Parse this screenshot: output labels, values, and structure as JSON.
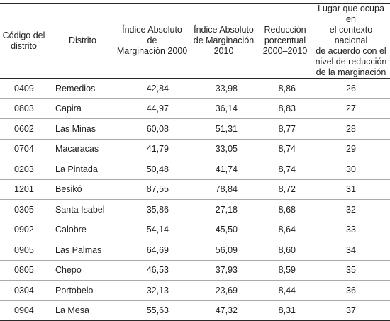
{
  "headers": {
    "code": [
      "Código del",
      "distrito"
    ],
    "district": [
      "Distrito"
    ],
    "index2000": [
      "Índice Absoluto de",
      "Marginación 2000"
    ],
    "index2010": [
      "Índice Absoluto",
      "de Marginación",
      "2010"
    ],
    "reduction": [
      "Reducción",
      "porcentual",
      "2000–2010"
    ],
    "rank": [
      "Lugar que ocupa en",
      "el contexto nacional",
      "de acuerdo con el",
      "nivel de reducción",
      "de la marginación"
    ]
  },
  "rows": [
    {
      "code": "0409",
      "district": "Remedios",
      "index2000": "42,84",
      "index2010": "33,98",
      "reduction": "8,86",
      "rank": "26"
    },
    {
      "code": "0803",
      "district": "Capira",
      "index2000": "44,97",
      "index2010": "36,14",
      "reduction": "8,83",
      "rank": "27"
    },
    {
      "code": "0602",
      "district": "Las Minas",
      "index2000": "60,08",
      "index2010": "51,31",
      "reduction": "8,77",
      "rank": "28"
    },
    {
      "code": "0704",
      "district": "Macaracas",
      "index2000": "41,79",
      "index2010": "33,05",
      "reduction": "8,74",
      "rank": "29"
    },
    {
      "code": "0203",
      "district": "La Pintada",
      "index2000": "50,48",
      "index2010": "41,74",
      "reduction": "8,74",
      "rank": "30"
    },
    {
      "code": "1201",
      "district": "Besikó",
      "index2000": "87,55",
      "index2010": "78,84",
      "reduction": "8,72",
      "rank": "31"
    },
    {
      "code": "0305",
      "district": "Santa Isabel",
      "index2000": "35,86",
      "index2010": "27,18",
      "reduction": "8,68",
      "rank": "32"
    },
    {
      "code": "0902",
      "district": "Calobre",
      "index2000": "54,14",
      "index2010": "45,50",
      "reduction": "8,64",
      "rank": "33"
    },
    {
      "code": "0905",
      "district": "Las Palmas",
      "index2000": "64,69",
      "index2010": "56,09",
      "reduction": "8,60",
      "rank": "34"
    },
    {
      "code": "0805",
      "district": "Chepo",
      "index2000": "46,53",
      "index2010": "37,93",
      "reduction": "8,59",
      "rank": "35"
    },
    {
      "code": "0304",
      "district": "Portobelo",
      "index2000": "32,13",
      "index2010": "23,69",
      "reduction": "8,44",
      "rank": "36"
    },
    {
      "code": "0904",
      "district": "La Mesa",
      "index2000": "55,63",
      "index2010": "47,32",
      "reduction": "8,31",
      "rank": "37"
    }
  ]
}
